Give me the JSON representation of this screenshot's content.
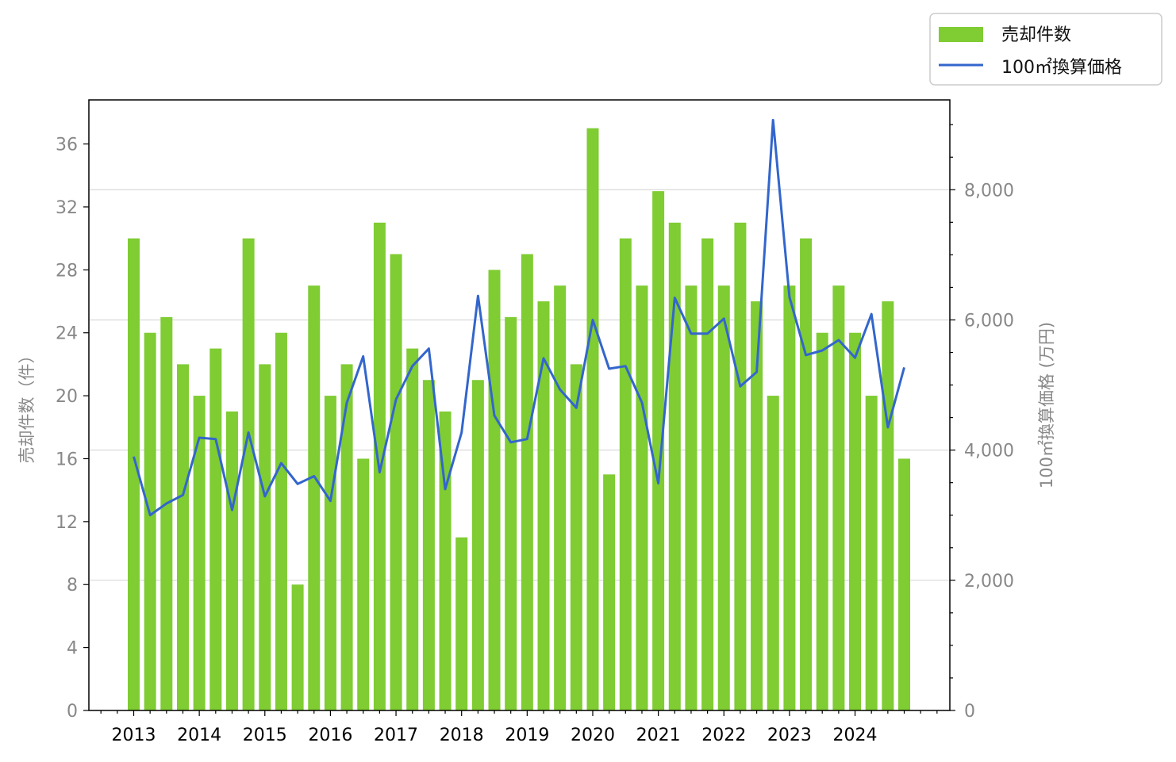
{
  "chart_data": {
    "type": "bar",
    "xlabel": "",
    "ylabel": "売却件数（件）",
    "ylabel_right": "100㎡換算価格 (万円)",
    "ylim": [
      0,
      38.8
    ],
    "ylim_right": [
      0,
      9380
    ],
    "yticks": [
      "0",
      "4",
      "8",
      "12",
      "16",
      "20",
      "24",
      "28",
      "32",
      "36"
    ],
    "yticks_right": [
      "0",
      "2,000",
      "4,000",
      "6,000",
      "8,000"
    ],
    "year_ticks": [
      "2013",
      "2014",
      "2015",
      "2016",
      "2017",
      "2018",
      "2019",
      "2020",
      "2021",
      "2022",
      "2023",
      "2024"
    ],
    "colors": {
      "bar": "#7fcc33",
      "line": "#3366cc",
      "grid": "#d9d9d9"
    },
    "legend_position": "top-right",
    "series": [
      {
        "name": "売却件数",
        "type": "bar",
        "axis": "left",
        "values": [
          30,
          24,
          25,
          22,
          20,
          23,
          19,
          30,
          22,
          24,
          8,
          27,
          20,
          22,
          16,
          31,
          29,
          23,
          21,
          19,
          11,
          21,
          28,
          25,
          29,
          26,
          27,
          22,
          37,
          15,
          30,
          27,
          33,
          31,
          27,
          30,
          27,
          31,
          26,
          20,
          27,
          30,
          24,
          27,
          24,
          20,
          26,
          16
        ]
      },
      {
        "name": "100㎡換算価格",
        "type": "line",
        "axis": "right",
        "values": [
          3900,
          3000,
          3180,
          3310,
          4190,
          4170,
          3080,
          4270,
          3290,
          3800,
          3480,
          3600,
          3220,
          4730,
          5440,
          3660,
          4780,
          5290,
          5560,
          3400,
          4270,
          6370,
          4530,
          4120,
          4170,
          5410,
          4930,
          4650,
          6000,
          5250,
          5290,
          4730,
          3490,
          6340,
          5790,
          5790,
          6020,
          4980,
          5200,
          9070,
          6350,
          5460,
          5530,
          5690,
          5420,
          6090,
          4350,
          5270
        ]
      }
    ]
  }
}
